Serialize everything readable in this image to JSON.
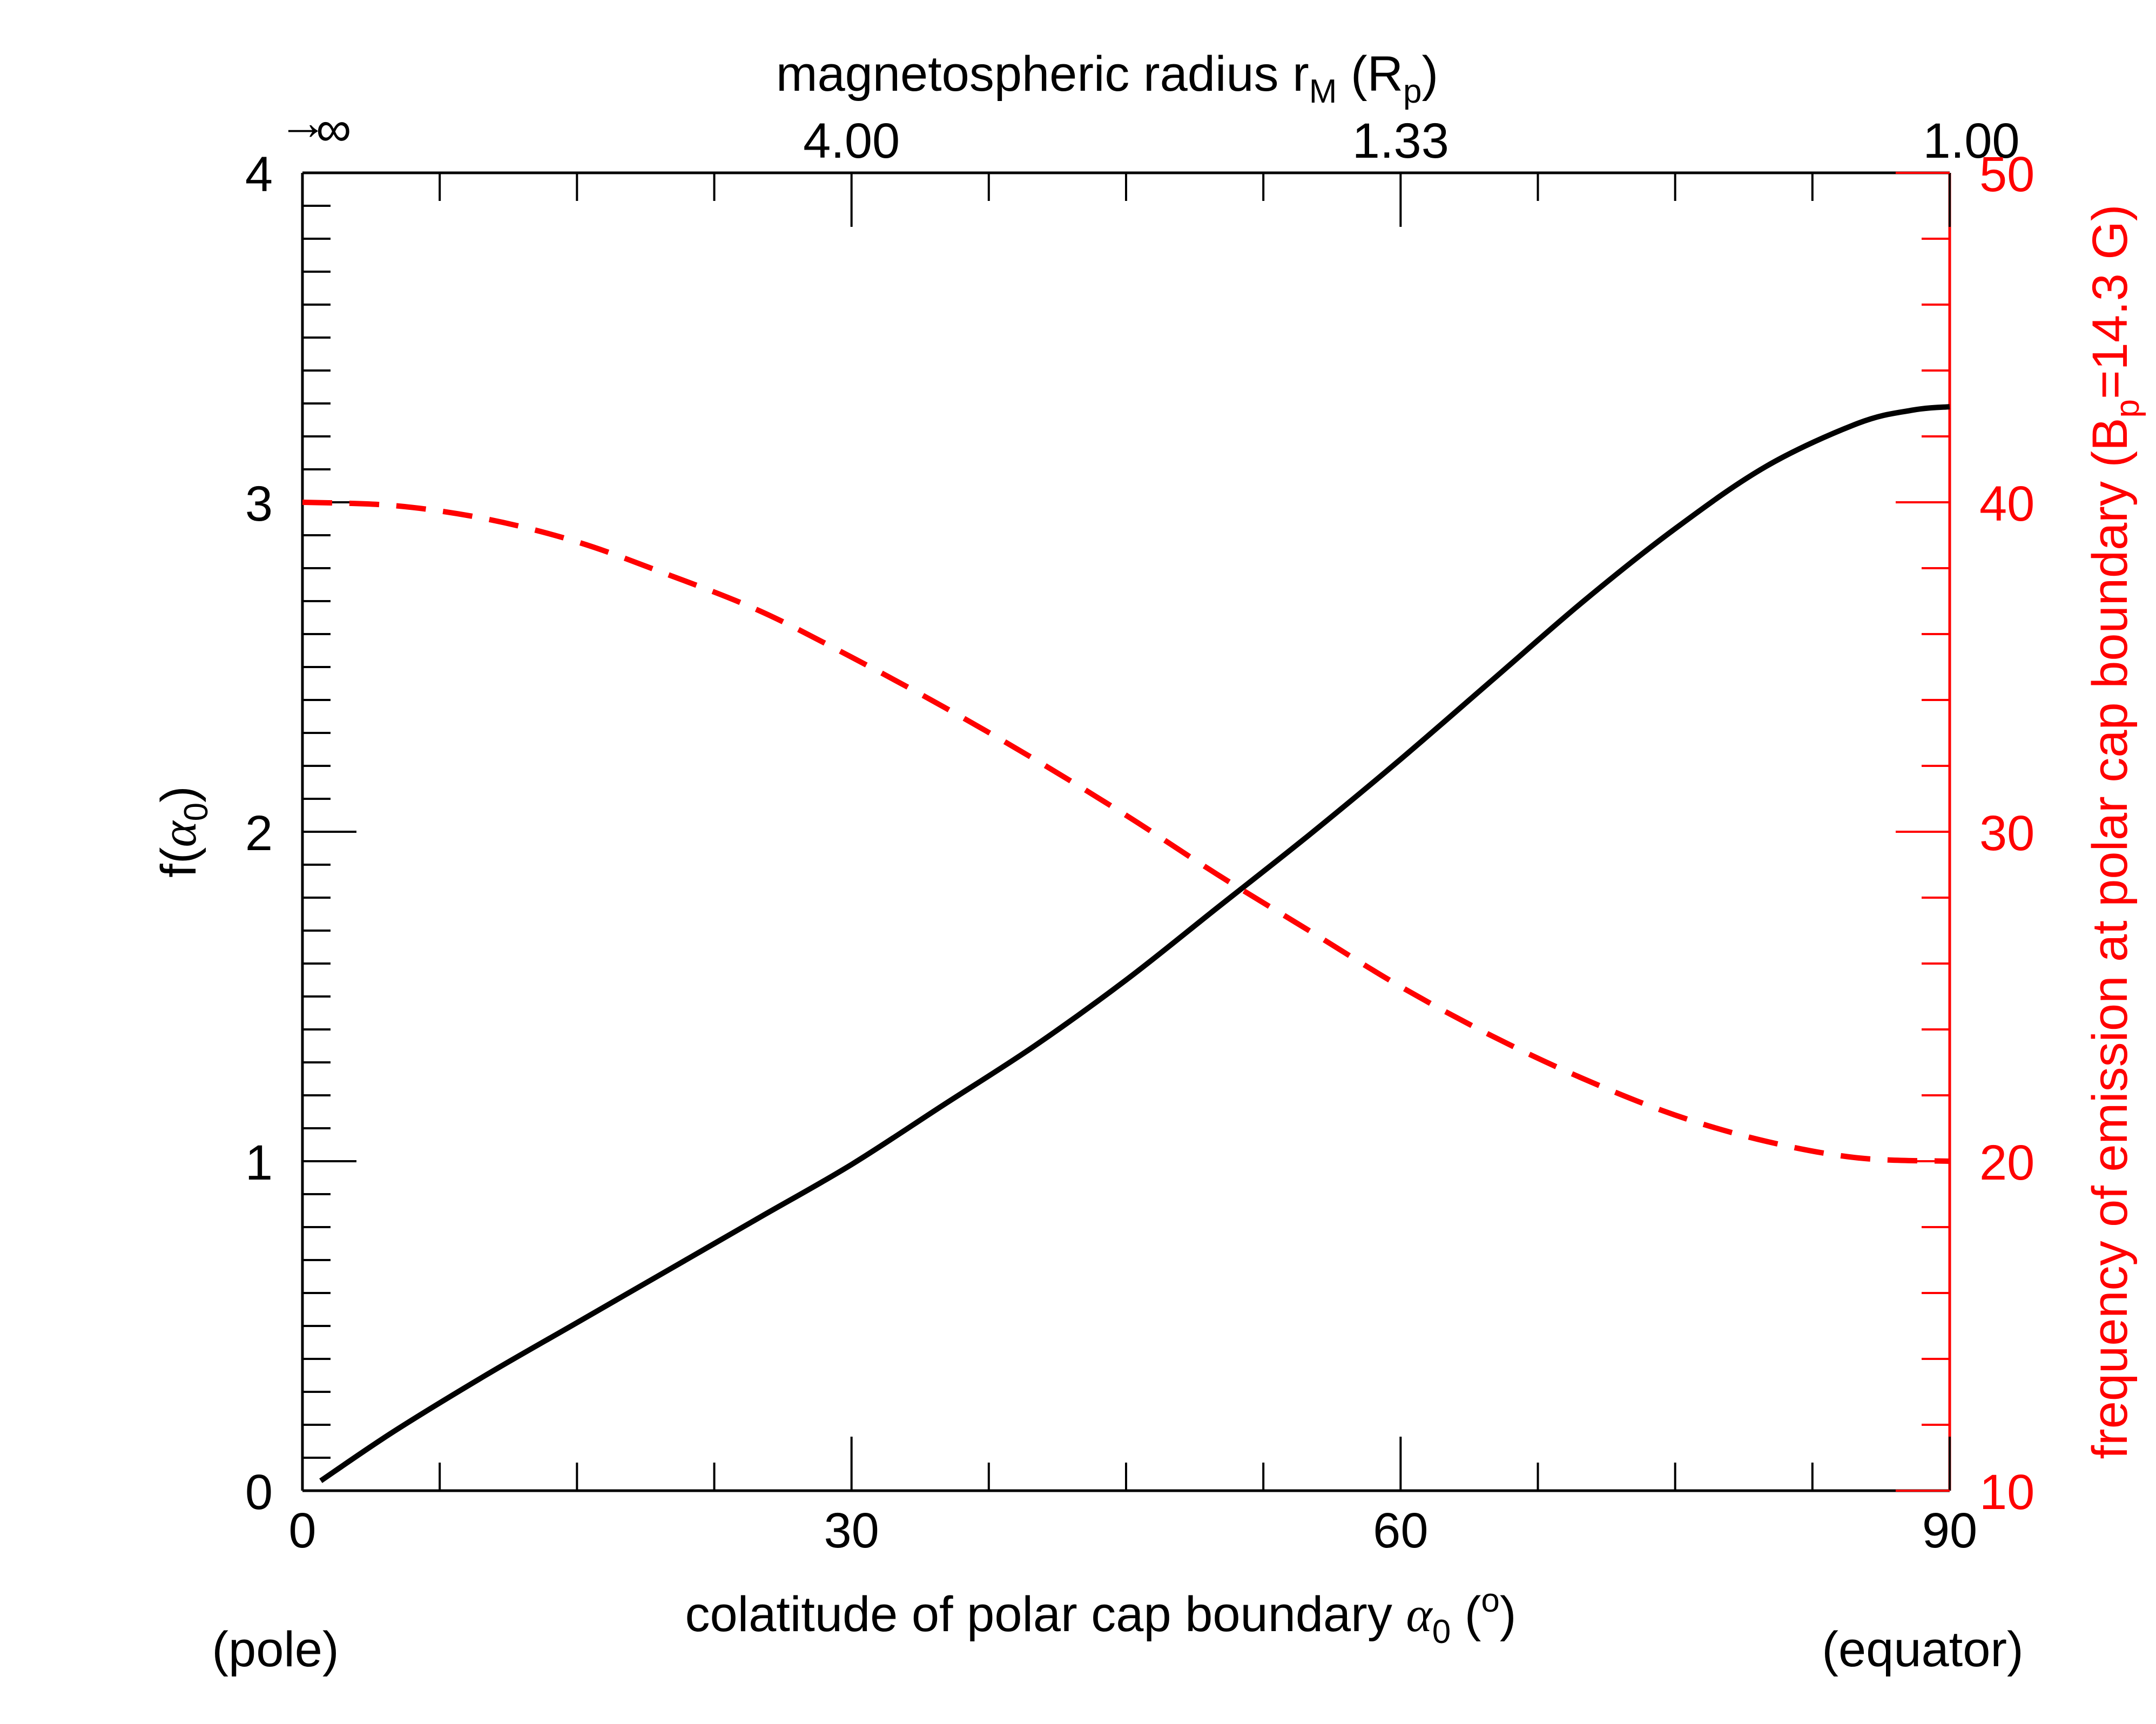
{
  "chart_data": {
    "type": "line",
    "xlabel": {
      "text": "colatitude of polar cap boundary ",
      "symbol": "α",
      "sub": "0",
      "paren_open": " (",
      "sup": "o",
      "paren_close": ")"
    },
    "ylabel_left": {
      "text": "f(",
      "symbol": "α",
      "sub": "0",
      "close": ")"
    },
    "ylabel_right": {
      "text": "frequency of emission at polar cap boundary (B",
      "sub": "p",
      "rest": "=14.3 G)"
    },
    "xlabel_top": {
      "text": "magnetospheric radius r",
      "sub": "M",
      "mid": " (R",
      "sub2": "p",
      "close": ")"
    },
    "x_annotations": {
      "left": "(pole)",
      "right": "(equator)"
    },
    "xlim": [
      0,
      90
    ],
    "ylim_left": [
      0,
      4
    ],
    "ylim_right": [
      10,
      50
    ],
    "x_ticks": [
      {
        "value": 0,
        "label": "0"
      },
      {
        "value": 30,
        "label": "30"
      },
      {
        "value": 60,
        "label": "60"
      },
      {
        "value": 90,
        "label": "90"
      }
    ],
    "y_left_ticks": [
      {
        "value": 0,
        "label": "0"
      },
      {
        "value": 1,
        "label": "1"
      },
      {
        "value": 2,
        "label": "2"
      },
      {
        "value": 3,
        "label": "3"
      },
      {
        "value": 4,
        "label": "4"
      }
    ],
    "y_right_ticks": [
      {
        "value": 10,
        "label": "10"
      },
      {
        "value": 20,
        "label": "20"
      },
      {
        "value": 30,
        "label": "30"
      },
      {
        "value": 40,
        "label": "40"
      },
      {
        "value": 50,
        "label": "50"
      }
    ],
    "x_top_ticks": [
      {
        "value": 30,
        "label": "4.00"
      },
      {
        "value": 60,
        "label": "1.33"
      },
      {
        "value": 90,
        "label": "1.00"
      }
    ],
    "top_left_label": {
      "arrow": "→",
      "text": "∞"
    },
    "series": [
      {
        "axis": "left",
        "color": "#000000",
        "style": "solid",
        "x": [
          1,
          5,
          10,
          15,
          20,
          25,
          30,
          35,
          40,
          45,
          50,
          55,
          60,
          65,
          70,
          75,
          80,
          85,
          88,
          90
        ],
        "y": [
          0.03,
          0.18,
          0.35,
          0.51,
          0.67,
          0.83,
          0.99,
          1.17,
          1.35,
          1.55,
          1.77,
          1.99,
          2.22,
          2.46,
          2.7,
          2.92,
          3.11,
          3.24,
          3.28,
          3.29
        ]
      },
      {
        "axis": "right",
        "color": "#ff0000",
        "style": "dashed",
        "x": [
          0,
          5,
          10,
          15,
          20,
          25,
          30,
          35,
          40,
          45,
          50,
          55,
          60,
          65,
          70,
          75,
          80,
          85,
          90
        ],
        "y": [
          40.0,
          39.9,
          39.5,
          38.8,
          37.8,
          36.7,
          35.3,
          33.8,
          32.2,
          30.5,
          28.7,
          27.0,
          25.3,
          23.8,
          22.5,
          21.4,
          20.6,
          20.1,
          20.0
        ]
      }
    ]
  }
}
